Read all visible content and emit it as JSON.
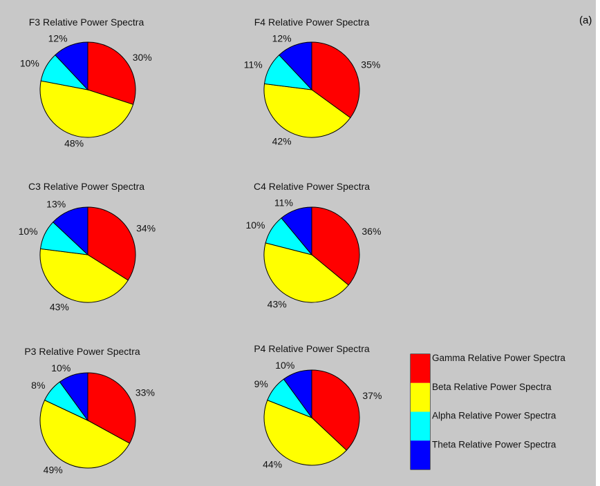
{
  "panel_label": "(a)",
  "chart_data": {
    "type": "pie",
    "legend": {
      "placement": "bottom-right",
      "entries": [
        {
          "key": "gamma",
          "label": "Gamma Relative Power Spectra",
          "color": "#ff0000"
        },
        {
          "key": "beta",
          "label": "Beta Relative Power Spectra",
          "color": "#ffff00"
        },
        {
          "key": "alpha",
          "label": "Alpha Relative Power Spectra",
          "color": "#00ffff"
        },
        {
          "key": "theta",
          "label": "Theta Relative Power Spectra",
          "color": "#0000ff"
        }
      ]
    },
    "charts": [
      {
        "id": "f3",
        "title": "F3 Relative Power Spectra",
        "slices": [
          {
            "key": "gamma",
            "value": 30,
            "label": "30%"
          },
          {
            "key": "beta",
            "value": 48,
            "label": "48%"
          },
          {
            "key": "alpha",
            "value": 10,
            "label": "10%"
          },
          {
            "key": "theta",
            "value": 12,
            "label": "12%"
          }
        ]
      },
      {
        "id": "f4",
        "title": "F4 Relative Power Spectra",
        "slices": [
          {
            "key": "gamma",
            "value": 35,
            "label": "35%"
          },
          {
            "key": "beta",
            "value": 42,
            "label": "42%"
          },
          {
            "key": "alpha",
            "value": 11,
            "label": "11%"
          },
          {
            "key": "theta",
            "value": 12,
            "label": "12%"
          }
        ]
      },
      {
        "id": "c3",
        "title": "C3 Relative Power Spectra",
        "slices": [
          {
            "key": "gamma",
            "value": 34,
            "label": "34%"
          },
          {
            "key": "beta",
            "value": 43,
            "label": "43%"
          },
          {
            "key": "alpha",
            "value": 10,
            "label": "10%"
          },
          {
            "key": "theta",
            "value": 13,
            "label": "13%"
          }
        ]
      },
      {
        "id": "c4",
        "title": "C4 Relative Power Spectra",
        "slices": [
          {
            "key": "gamma",
            "value": 36,
            "label": "36%"
          },
          {
            "key": "beta",
            "value": 43,
            "label": "43%"
          },
          {
            "key": "alpha",
            "value": 10,
            "label": "10%"
          },
          {
            "key": "theta",
            "value": 11,
            "label": "11%"
          }
        ]
      },
      {
        "id": "p3",
        "title": "P3 Relative Power Spectra",
        "slices": [
          {
            "key": "gamma",
            "value": 33,
            "label": "33%"
          },
          {
            "key": "beta",
            "value": 49,
            "label": "49%"
          },
          {
            "key": "alpha",
            "value": 8,
            "label": "8%"
          },
          {
            "key": "theta",
            "value": 10,
            "label": "10%"
          }
        ]
      },
      {
        "id": "p4",
        "title": "P4 Relative Power Spectra",
        "slices": [
          {
            "key": "gamma",
            "value": 37,
            "label": "37%"
          },
          {
            "key": "beta",
            "value": 44,
            "label": "44%"
          },
          {
            "key": "alpha",
            "value": 9,
            "label": "9%"
          },
          {
            "key": "theta",
            "value": 10,
            "label": "10%"
          }
        ]
      }
    ]
  }
}
